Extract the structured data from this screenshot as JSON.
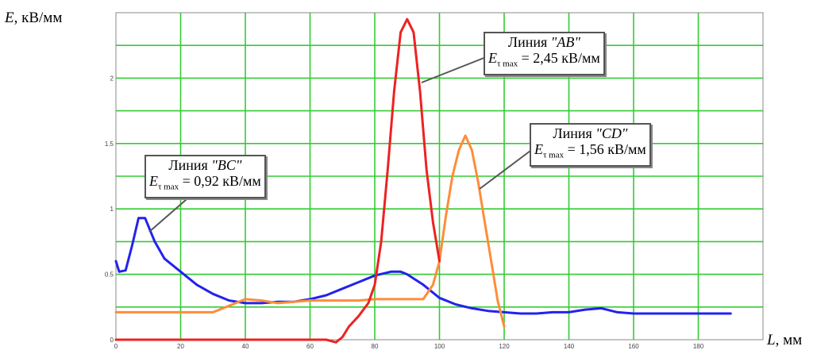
{
  "chart_data": {
    "type": "line",
    "xlabel_var": "L",
    "xlabel_unit": ", мм",
    "ylabel_var": "E",
    "ylabel_unit": ", кВ/мм",
    "xlim": [
      0,
      200
    ],
    "ylim": [
      0,
      2.5
    ],
    "x_ticks": [
      0,
      20,
      40,
      60,
      80,
      100,
      120,
      140,
      160,
      180
    ],
    "y_ticks": [
      0,
      0.5,
      1,
      1.5,
      2
    ],
    "y_tick_labels": [
      "0",
      "0.5",
      "1",
      "1.5",
      "2"
    ],
    "grid": true,
    "grid_color": "#33cc33",
    "series": [
      {
        "key": "bc",
        "color": "#2222ee",
        "x": [
          0,
          1,
          3,
          5,
          7,
          9,
          12,
          15,
          20,
          25,
          30,
          35,
          40,
          45,
          50,
          55,
          60,
          65,
          70,
          75,
          80,
          85,
          88,
          90,
          95,
          100,
          105,
          110,
          115,
          120,
          125,
          130,
          135,
          140,
          145,
          150,
          155,
          160,
          165,
          170,
          180,
          190
        ],
        "y": [
          0.6,
          0.52,
          0.53,
          0.72,
          0.93,
          0.93,
          0.75,
          0.62,
          0.52,
          0.42,
          0.35,
          0.3,
          0.28,
          0.28,
          0.29,
          0.29,
          0.31,
          0.34,
          0.39,
          0.44,
          0.49,
          0.52,
          0.52,
          0.5,
          0.42,
          0.32,
          0.27,
          0.24,
          0.22,
          0.21,
          0.2,
          0.2,
          0.21,
          0.21,
          0.23,
          0.24,
          0.21,
          0.2,
          0.2,
          0.2,
          0.2,
          0.2
        ]
      },
      {
        "key": "cd",
        "color": "#ff8c3a",
        "x": [
          0,
          10,
          20,
          30,
          35,
          40,
          45,
          50,
          55,
          60,
          65,
          70,
          75,
          80,
          85,
          90,
          95,
          98,
          100,
          102,
          104,
          106,
          108,
          110,
          112,
          114,
          116,
          118,
          120
        ],
        "y": [
          0.21,
          0.21,
          0.21,
          0.21,
          0.26,
          0.31,
          0.3,
          0.28,
          0.29,
          0.3,
          0.3,
          0.3,
          0.3,
          0.31,
          0.31,
          0.31,
          0.31,
          0.42,
          0.6,
          0.95,
          1.25,
          1.45,
          1.56,
          1.45,
          1.2,
          0.9,
          0.6,
          0.3,
          0.1
        ]
      },
      {
        "key": "ab",
        "color": "#ee2222",
        "x": [
          0,
          20,
          40,
          60,
          65,
          68,
          70,
          72,
          75,
          78,
          80,
          82,
          84,
          86,
          88,
          90,
          92,
          94,
          96,
          98,
          100
        ],
        "y": [
          0,
          0,
          0,
          0,
          0,
          -0.02,
          0.02,
          0.1,
          0.18,
          0.28,
          0.42,
          0.75,
          1.3,
          1.9,
          2.35,
          2.45,
          2.35,
          1.9,
          1.3,
          0.9,
          0.6
        ]
      }
    ],
    "annotations": {
      "ab": {
        "name": "Линия ",
        "code": "\"AB\"",
        "var": "E",
        "sub": "τ max",
        "value": " = 2,45 кВ/мм"
      },
      "cd": {
        "name": "Линия ",
        "code": "\"CD\"",
        "var": "E",
        "sub": "τ max",
        "value": " = 1,56 кВ/мм"
      },
      "bc": {
        "name": "Линия ",
        "code": "\"BC\"",
        "var": "E",
        "sub": "τ max",
        "value": " = 0,92 кВ/мм"
      }
    }
  }
}
